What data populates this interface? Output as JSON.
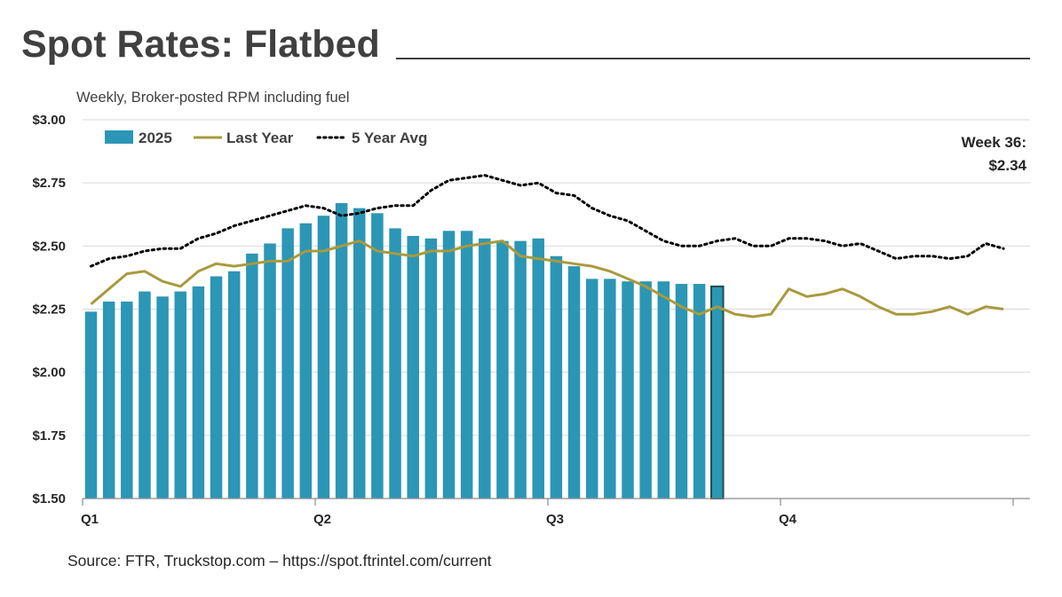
{
  "header": {
    "title": "Spot Rates: Flatbed",
    "subtitle": "Weekly, Broker-posted RPM including fuel"
  },
  "footer": {
    "source": "Source: FTR, Truckstop.com – https://spot.ftrintel.com/current"
  },
  "chart_data": {
    "type": "bar",
    "title": "Spot Rates: Flatbed",
    "subtitle": "Weekly, Broker-posted RPM including fuel",
    "ylim": [
      1.5,
      3.0
    ],
    "y_ticks": [
      1.5,
      1.75,
      2.0,
      2.25,
      2.5,
      2.75,
      3.0
    ],
    "y_tick_labels": [
      "$1.50",
      "$1.75",
      "$2.00",
      "$2.25",
      "$2.50",
      "$2.75",
      "$3.00"
    ],
    "x_range": [
      1,
      52
    ],
    "x_tick_labels": [
      {
        "label": "Q1",
        "week": 1
      },
      {
        "label": "Q2",
        "week": 14
      },
      {
        "label": "Q3",
        "week": 27
      },
      {
        "label": "Q4",
        "week": 40
      }
    ],
    "grid": true,
    "legend_position": "top-left",
    "series": [
      {
        "name": "2025",
        "type": "bar",
        "color": "#2b96b5",
        "x": [
          1,
          2,
          3,
          4,
          5,
          6,
          7,
          8,
          9,
          10,
          11,
          12,
          13,
          14,
          15,
          16,
          17,
          18,
          19,
          20,
          21,
          22,
          23,
          24,
          25,
          26,
          27,
          28,
          29,
          30,
          31,
          32,
          33,
          34,
          35,
          36
        ],
        "values": [
          2.24,
          2.28,
          2.28,
          2.32,
          2.3,
          2.32,
          2.34,
          2.38,
          2.4,
          2.47,
          2.51,
          2.57,
          2.59,
          2.62,
          2.67,
          2.65,
          2.63,
          2.57,
          2.54,
          2.53,
          2.56,
          2.56,
          2.53,
          2.52,
          2.52,
          2.53,
          2.46,
          2.42,
          2.37,
          2.37,
          2.36,
          2.36,
          2.36,
          2.35,
          2.35,
          2.34
        ]
      },
      {
        "name": "Last Year",
        "type": "line",
        "color": "#a89a3e",
        "x": [
          1,
          2,
          3,
          4,
          5,
          6,
          7,
          8,
          9,
          10,
          11,
          12,
          13,
          14,
          15,
          16,
          17,
          18,
          19,
          20,
          21,
          22,
          23,
          24,
          25,
          26,
          27,
          28,
          29,
          30,
          31,
          32,
          33,
          34,
          35,
          36,
          37,
          38,
          39,
          40,
          41,
          42,
          43,
          44,
          45,
          46,
          47,
          48,
          49,
          50,
          51,
          52
        ],
        "values": [
          2.27,
          2.33,
          2.39,
          2.4,
          2.36,
          2.34,
          2.4,
          2.43,
          2.42,
          2.43,
          2.44,
          2.44,
          2.48,
          2.48,
          2.5,
          2.52,
          2.48,
          2.47,
          2.46,
          2.48,
          2.48,
          2.5,
          2.51,
          2.52,
          2.46,
          2.45,
          2.44,
          2.43,
          2.42,
          2.4,
          2.37,
          2.34,
          2.3,
          2.26,
          2.23,
          2.26,
          2.23,
          2.22,
          2.23,
          2.33,
          2.3,
          2.31,
          2.33,
          2.3,
          2.26,
          2.23,
          2.23,
          2.24,
          2.26,
          2.23,
          2.26,
          2.25
        ]
      },
      {
        "name": "5 Year Avg",
        "type": "line",
        "style": "dotted",
        "color": "#000000",
        "x": [
          1,
          2,
          3,
          4,
          5,
          6,
          7,
          8,
          9,
          10,
          11,
          12,
          13,
          14,
          15,
          16,
          17,
          18,
          19,
          20,
          21,
          22,
          23,
          24,
          25,
          26,
          27,
          28,
          29,
          30,
          31,
          32,
          33,
          34,
          35,
          36,
          37,
          38,
          39,
          40,
          41,
          42,
          43,
          44,
          45,
          46,
          47,
          48,
          49,
          50,
          51,
          52
        ],
        "values": [
          2.42,
          2.45,
          2.46,
          2.48,
          2.49,
          2.49,
          2.53,
          2.55,
          2.58,
          2.6,
          2.62,
          2.64,
          2.66,
          2.65,
          2.62,
          2.63,
          2.65,
          2.66,
          2.66,
          2.72,
          2.76,
          2.77,
          2.78,
          2.76,
          2.74,
          2.75,
          2.71,
          2.7,
          2.65,
          2.62,
          2.6,
          2.56,
          2.52,
          2.5,
          2.5,
          2.52,
          2.53,
          2.5,
          2.5,
          2.53,
          2.53,
          2.52,
          2.5,
          2.51,
          2.48,
          2.45,
          2.46,
          2.46,
          2.45,
          2.46,
          2.51,
          2.49
        ]
      }
    ],
    "highlight": {
      "series": "2025",
      "week": 36,
      "outline_color": "#1f4e4b"
    },
    "annotation": {
      "line1": "Week 36:",
      "line2": "$2.34"
    }
  }
}
